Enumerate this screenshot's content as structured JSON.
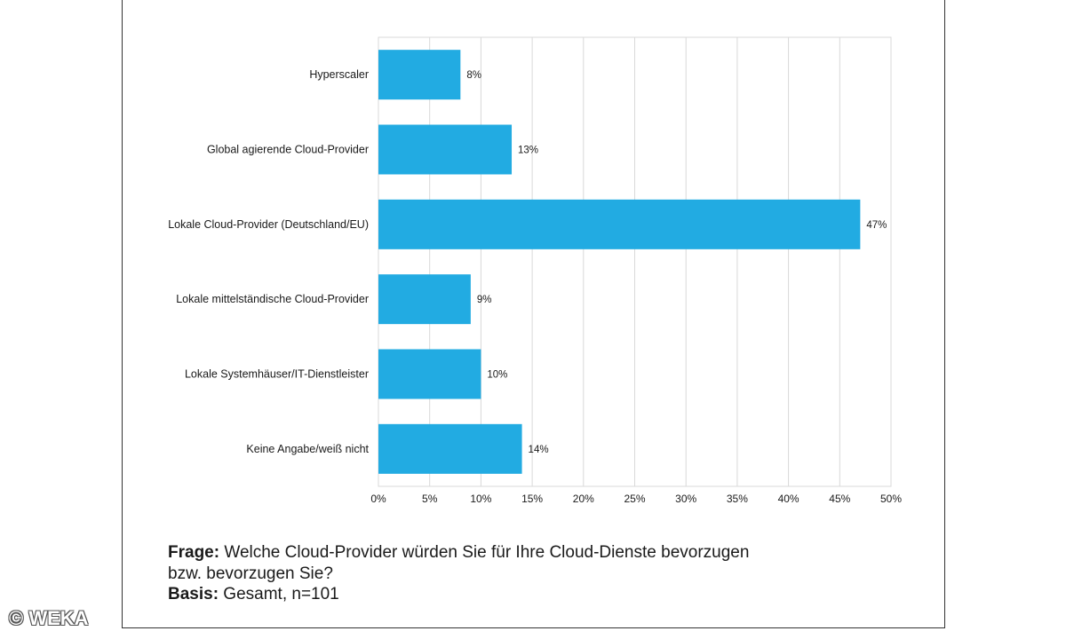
{
  "chart_data": {
    "type": "bar",
    "orientation": "horizontal",
    "categories": [
      "Hyperscaler",
      "Global agierende Cloud-Provider",
      "Lokale Cloud-Provider (Deutschland/EU)",
      "Lokale mittelständische Cloud-Provider",
      "Lokale Systemhäuser/IT-Dienstleister",
      "Keine Angabe/weiß nicht"
    ],
    "values": [
      8,
      13,
      47,
      9,
      10,
      14
    ],
    "value_labels": [
      "8%",
      "13%",
      "47%",
      "9%",
      "10%",
      "14%"
    ],
    "xlim": [
      0,
      50
    ],
    "xticks": [
      "0%",
      "5%",
      "10%",
      "15%",
      "20%",
      "25%",
      "30%",
      "35%",
      "40%",
      "45%",
      "50%"
    ],
    "grid": "vertical",
    "bar_color": "#22ABE2",
    "title": "",
    "xlabel": "",
    "ylabel": ""
  },
  "caption": {
    "question_label": "Frage:",
    "question_text": " Welche Cloud-Provider würden Sie für Ihre Cloud-Dienste bevorzugen",
    "question_text_line2": "bzw. bevorzugen Sie?",
    "basis_label": "Basis:",
    "basis_text": " Gesamt, n=101"
  },
  "watermark": "© WEKA"
}
